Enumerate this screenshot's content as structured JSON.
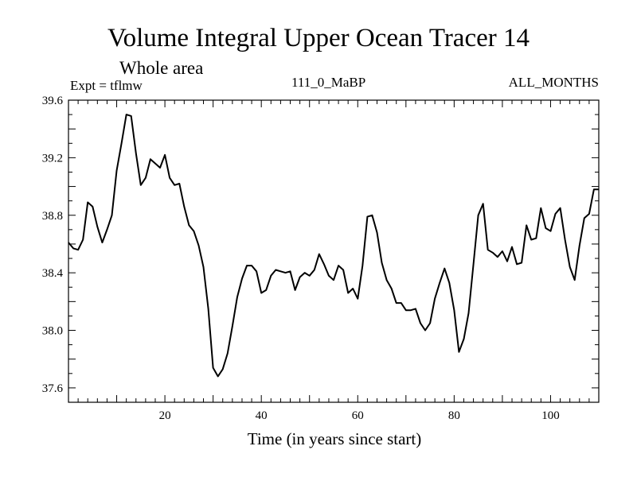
{
  "chart_data": {
    "type": "line",
    "title": "Volume Integral Upper Ocean Tracer 14",
    "subtitle": "Whole area",
    "experiment_label": "Expt = tflmw",
    "run_label": "111_0_MaBP",
    "months_label": "ALL_MONTHS",
    "xlabel": "Time (in years since start)",
    "ylabel": "",
    "xlim": [
      0,
      110
    ],
    "ylim": [
      37.5,
      39.6
    ],
    "xticks": [
      20,
      40,
      60,
      80,
      100
    ],
    "yticks": [
      37.6,
      38.0,
      38.4,
      38.8,
      39.2,
      39.6
    ],
    "ytick_labels": [
      "37.6",
      "38.0",
      "38.4",
      "38.8",
      "39.2",
      "39.6"
    ],
    "series": [
      {
        "name": "Tracer 14",
        "x": [
          0,
          1,
          2,
          3,
          4,
          5,
          6,
          7,
          8,
          9,
          10,
          11,
          12,
          13,
          14,
          15,
          16,
          17,
          18,
          19,
          20,
          21,
          22,
          23,
          24,
          25,
          26,
          27,
          28,
          29,
          30,
          31,
          32,
          33,
          34,
          35,
          36,
          37,
          38,
          39,
          40,
          41,
          42,
          43,
          44,
          45,
          46,
          47,
          48,
          49,
          50,
          51,
          52,
          53,
          54,
          55,
          56,
          57,
          58,
          59,
          60,
          61,
          62,
          63,
          64,
          65,
          66,
          67,
          68,
          69,
          70,
          71,
          72,
          73,
          74,
          75,
          76,
          77,
          78,
          79,
          80,
          81,
          82,
          83,
          84,
          85,
          86,
          87,
          88,
          89,
          90,
          91,
          92,
          93,
          94,
          95,
          96,
          97,
          98,
          99,
          100,
          101,
          102,
          103,
          104,
          105,
          106,
          107,
          108,
          109,
          110
        ],
        "values": [
          38.61,
          38.57,
          38.56,
          38.63,
          38.89,
          38.86,
          38.72,
          38.61,
          38.7,
          38.8,
          39.11,
          39.3,
          39.5,
          39.49,
          39.23,
          39.01,
          39.06,
          39.19,
          39.16,
          39.13,
          39.22,
          39.06,
          39.01,
          39.02,
          38.86,
          38.73,
          38.69,
          38.59,
          38.44,
          38.15,
          37.74,
          37.68,
          37.73,
          37.84,
          38.03,
          38.23,
          38.36,
          38.45,
          38.45,
          38.41,
          38.26,
          38.28,
          38.38,
          38.42,
          38.41,
          38.4,
          38.41,
          38.28,
          38.37,
          38.4,
          38.38,
          38.42,
          38.53,
          38.46,
          38.38,
          38.35,
          38.45,
          38.42,
          38.26,
          38.29,
          38.22,
          38.45,
          38.79,
          38.8,
          38.68,
          38.47,
          38.35,
          38.29,
          38.19,
          38.19,
          38.14,
          38.14,
          38.15,
          38.05,
          38.0,
          38.05,
          38.22,
          38.33,
          38.43,
          38.33,
          38.14,
          37.85,
          37.94,
          38.12,
          38.46,
          38.8,
          38.88,
          38.56,
          38.54,
          38.51,
          38.55,
          38.48,
          38.58,
          38.46,
          38.47,
          38.73,
          38.63,
          38.64,
          38.85,
          38.71,
          38.69,
          38.81,
          38.85,
          38.63,
          38.44,
          38.35,
          38.59,
          38.78,
          38.81,
          38.98,
          38.98
        ]
      }
    ],
    "grid": false,
    "colors": {
      "line": "#000000",
      "axes": "#000000",
      "background": "#ffffff"
    }
  }
}
